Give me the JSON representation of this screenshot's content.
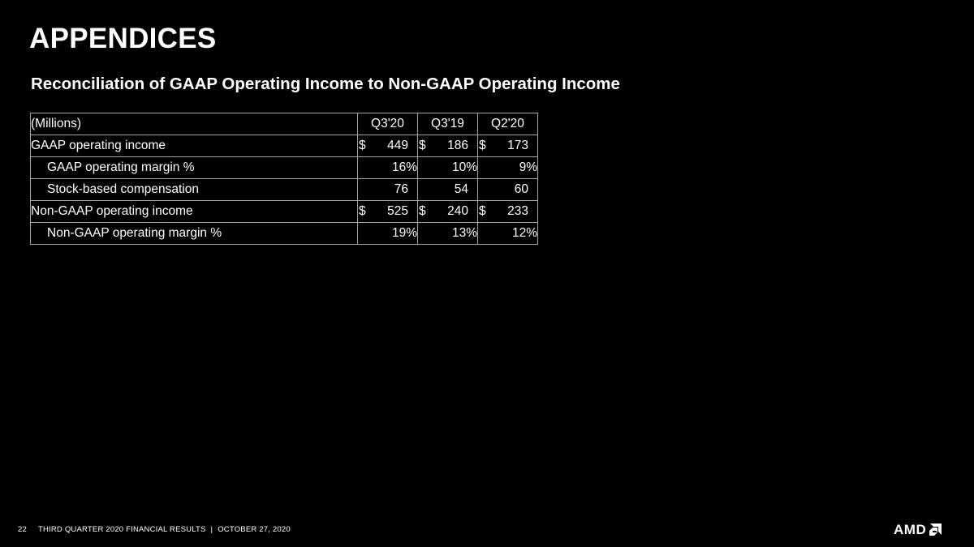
{
  "title": "APPENDICES",
  "subtitle": "Reconciliation of GAAP Operating Income to Non-GAAP Operating Income",
  "table": {
    "header": [
      "(Millions)",
      "Q3'20",
      "Q3'19",
      "Q2'20"
    ],
    "rows": [
      {
        "label": "GAAP operating income",
        "cur": "$",
        "values": [
          "449",
          "186",
          "173"
        ]
      },
      {
        "label": "GAAP operating margin %",
        "values": [
          "16%",
          "10%",
          "9%"
        ]
      },
      {
        "label": "Stock-based compensation",
        "values": [
          "76",
          "54",
          "60"
        ]
      },
      {
        "label": "Non-GAAP operating income",
        "cur": "$",
        "values": [
          "525",
          "240",
          "233"
        ]
      },
      {
        "label": "Non-GAAP operating margin %",
        "values": [
          "19%",
          "13%",
          "12%"
        ]
      }
    ]
  },
  "footer": {
    "page": "22",
    "text": "THIRD QUARTER 2020 FINANCIAL RESULTS",
    "separator": "|",
    "date": "OCTOBER 27, 2020"
  },
  "logo": {
    "text": "AMD",
    "icon": "amd-arrow-icon"
  }
}
